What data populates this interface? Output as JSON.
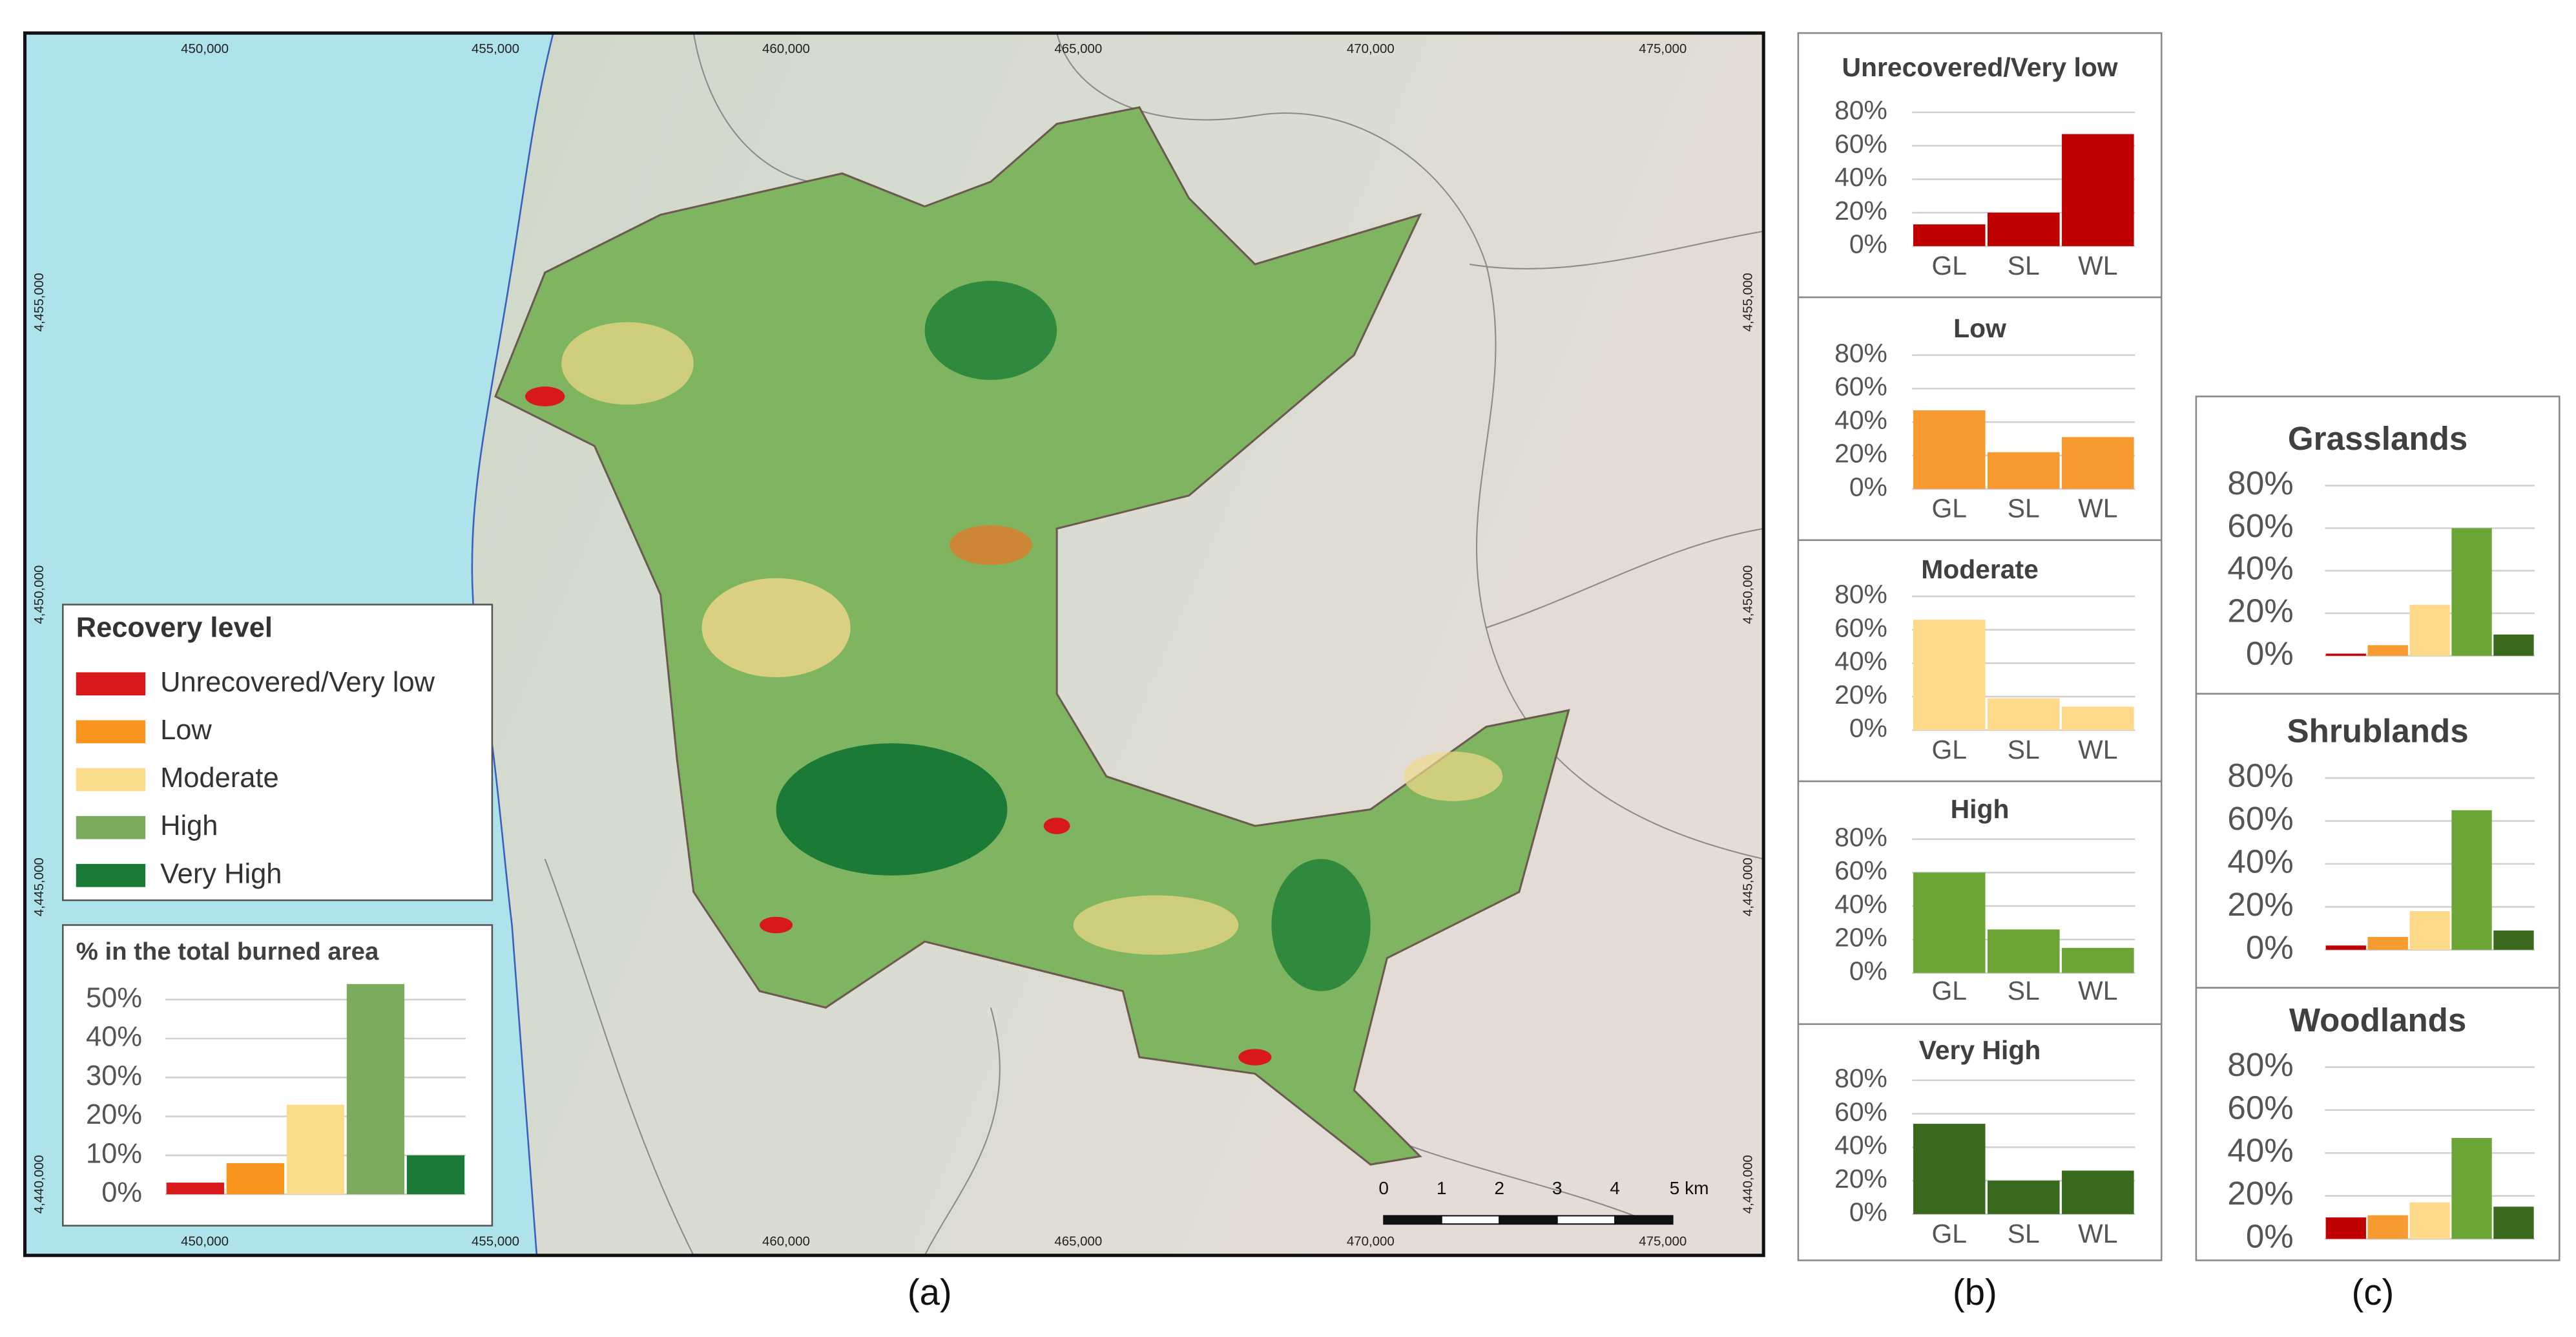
{
  "panel_labels": [
    "(a)",
    "(b)",
    "(c)"
  ],
  "map": {
    "x_labels": [
      "450,000",
      "455,000",
      "460,000",
      "465,000",
      "470,000",
      "475,000"
    ],
    "y_labels": [
      "4,455,000",
      "4,450,000",
      "4,445,000",
      "4,440,000"
    ],
    "scale_labels": [
      "0",
      "1",
      "2",
      "3",
      "4",
      "5 km"
    ],
    "legend": {
      "title": "Recovery level",
      "items": [
        {
          "name": "Unrecovered/Very low",
          "color": "#d7191c"
        },
        {
          "name": "Low",
          "color": "#f7951f"
        },
        {
          "name": "Moderate",
          "color": "#fbdc8a"
        },
        {
          "name": "High",
          "color": "#7dab5e"
        },
        {
          "name": "Very High",
          "color": "#1b7a35"
        }
      ]
    }
  },
  "chart_data": [
    {
      "type": "bar",
      "title": "% in the total burned area",
      "categories": [
        null,
        null,
        null,
        null,
        null
      ],
      "values": [
        3,
        8,
        23,
        54,
        10
      ],
      "colors": [
        "#d7191c",
        "#f7951f",
        "#fbdc8a",
        "#7dab5e",
        "#1b7a35"
      ],
      "ylim": [
        0,
        56
      ],
      "yticks": [
        {
          "value": 0,
          "label": "0%"
        },
        {
          "value": 10,
          "label": "10%"
        },
        {
          "value": 20,
          "label": "20%"
        },
        {
          "value": 30,
          "label": "30%"
        },
        {
          "value": 40,
          "label": "40%"
        },
        {
          "value": 50,
          "label": "50%"
        }
      ],
      "grid": true
    },
    {
      "type": "bar",
      "title": "Unrecovered/Very low",
      "categories": [
        "GL",
        "SL",
        "WL"
      ],
      "values": [
        13,
        20,
        67
      ],
      "color": "#c00000",
      "ylim": [
        0,
        80
      ],
      "yticks": [
        {
          "value": 0,
          "label": "0%"
        },
        {
          "value": 20,
          "label": "20%"
        },
        {
          "value": 40,
          "label": "40%"
        },
        {
          "value": 60,
          "label": "60%"
        },
        {
          "value": 80,
          "label": "80%"
        }
      ],
      "grid": true
    },
    {
      "type": "bar",
      "title": "Low",
      "categories": [
        "GL",
        "SL",
        "WL"
      ],
      "values": [
        47,
        22,
        31
      ],
      "color": "#f79a2f",
      "ylim": [
        0,
        80
      ],
      "yticks": [
        {
          "value": 0,
          "label": "0%"
        },
        {
          "value": 20,
          "label": "20%"
        },
        {
          "value": 40,
          "label": "40%"
        },
        {
          "value": 60,
          "label": "60%"
        },
        {
          "value": 80,
          "label": "80%"
        }
      ],
      "grid": true
    },
    {
      "type": "bar",
      "title": "Moderate",
      "categories": [
        "GL",
        "SL",
        "WL"
      ],
      "values": [
        66,
        19,
        14
      ],
      "color": "#ffd98a",
      "ylim": [
        0,
        80
      ],
      "yticks": [
        {
          "value": 0,
          "label": "0%"
        },
        {
          "value": 20,
          "label": "20%"
        },
        {
          "value": 40,
          "label": "40%"
        },
        {
          "value": 60,
          "label": "60%"
        },
        {
          "value": 80,
          "label": "80%"
        }
      ],
      "grid": true
    },
    {
      "type": "bar",
      "title": "High",
      "categories": [
        "GL",
        "SL",
        "WL"
      ],
      "values": [
        60,
        26,
        15
      ],
      "color": "#6aa535",
      "ylim": [
        0,
        80
      ],
      "yticks": [
        {
          "value": 0,
          "label": "0%"
        },
        {
          "value": 20,
          "label": "20%"
        },
        {
          "value": 40,
          "label": "40%"
        },
        {
          "value": 60,
          "label": "60%"
        },
        {
          "value": 80,
          "label": "80%"
        }
      ],
      "grid": true
    },
    {
      "type": "bar",
      "title": "Very High",
      "categories": [
        "GL",
        "SL",
        "WL"
      ],
      "values": [
        54,
        20,
        26
      ],
      "color": "#38691c",
      "ylim": [
        0,
        80
      ],
      "yticks": [
        {
          "value": 0,
          "label": "0%"
        },
        {
          "value": 20,
          "label": "20%"
        },
        {
          "value": 40,
          "label": "40%"
        },
        {
          "value": 60,
          "label": "60%"
        },
        {
          "value": 80,
          "label": "80%"
        }
      ],
      "grid": true
    },
    {
      "type": "bar",
      "title": "Grasslands",
      "categories": [
        null,
        null,
        null,
        null,
        null
      ],
      "values": [
        1,
        5,
        24,
        60,
        10
      ],
      "colors": [
        "#c00000",
        "#f79a2f",
        "#ffd98a",
        "#6aa535",
        "#38691c"
      ],
      "ylim": [
        0,
        80
      ],
      "yticks": [
        {
          "value": 0,
          "label": "0%"
        },
        {
          "value": 20,
          "label": "20%"
        },
        {
          "value": 40,
          "label": "40%"
        },
        {
          "value": 60,
          "label": "60%"
        },
        {
          "value": 80,
          "label": "80%"
        }
      ],
      "grid": true
    },
    {
      "type": "bar",
      "title": "Shrublands",
      "categories": [
        null,
        null,
        null,
        null,
        null
      ],
      "values": [
        2,
        6,
        18,
        65,
        9
      ],
      "colors": [
        "#c00000",
        "#f79a2f",
        "#ffd98a",
        "#6aa535",
        "#38691c"
      ],
      "ylim": [
        0,
        80
      ],
      "yticks": [
        {
          "value": 0,
          "label": "0%"
        },
        {
          "value": 20,
          "label": "20%"
        },
        {
          "value": 40,
          "label": "40%"
        },
        {
          "value": 60,
          "label": "60%"
        },
        {
          "value": 80,
          "label": "80%"
        }
      ],
      "grid": true
    },
    {
      "type": "bar",
      "title": "Woodlands",
      "categories": [
        null,
        null,
        null,
        null,
        null
      ],
      "values": [
        10,
        11,
        17,
        47,
        15
      ],
      "colors": [
        "#c00000",
        "#f79a2f",
        "#ffd98a",
        "#6aa535",
        "#38691c"
      ],
      "ylim": [
        0,
        80
      ],
      "yticks": [
        {
          "value": 0,
          "label": "0%"
        },
        {
          "value": 20,
          "label": "20%"
        },
        {
          "value": 40,
          "label": "40%"
        },
        {
          "value": 60,
          "label": "60%"
        },
        {
          "value": 80,
          "label": "80%"
        }
      ],
      "grid": true
    }
  ]
}
